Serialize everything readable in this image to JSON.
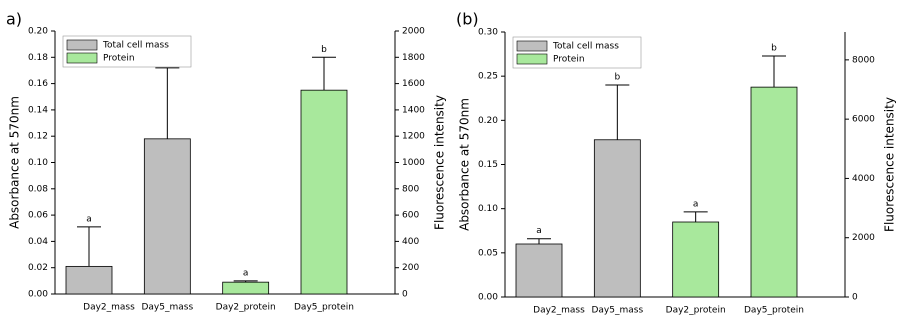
{
  "chart_data": [
    {
      "type": "bar",
      "panel_label": "a)",
      "ylabel": "Absorbance at 570nm",
      "y2label": "Fluorescence intensity",
      "categories": [
        "Day2_mass",
        "Day5_mass",
        "Day2_protein",
        "Day5_protein"
      ],
      "ylim": [
        0,
        0.2
      ],
      "yticks": [
        {
          "value": 0,
          "label": "0.00"
        },
        {
          "value": 0.02,
          "label": "0.02"
        },
        {
          "value": 0.04,
          "label": "0.04"
        },
        {
          "value": 0.06,
          "label": "0.06"
        },
        {
          "value": 0.08,
          "label": "0.08"
        },
        {
          "value": 0.1,
          "label": "0.10"
        },
        {
          "value": 0.12,
          "label": "0.12"
        },
        {
          "value": 0.14,
          "label": "0.14"
        },
        {
          "value": 0.16,
          "label": "0.16"
        },
        {
          "value": 0.18,
          "label": "0.18"
        },
        {
          "value": 0.2,
          "label": "0.20"
        }
      ],
      "y2lim": [
        0,
        2000
      ],
      "y2ticks": [
        0,
        200,
        400,
        600,
        800,
        1000,
        1200,
        1400,
        1600,
        1800,
        2000
      ],
      "series": [
        {
          "name": "Total cell mass",
          "color": "#bebebe",
          "values": [
            0.021,
            0.118,
            null,
            null
          ],
          "errors": [
            0.03,
            0.054,
            null,
            null
          ],
          "annotations": [
            "a",
            "b",
            null,
            null
          ]
        },
        {
          "name": "Protein",
          "color": "#a8e89c",
          "axis": "y2",
          "values": [
            null,
            null,
            90,
            1550
          ],
          "errors": [
            null,
            null,
            10,
            250
          ],
          "annotations": [
            null,
            null,
            "a",
            "b"
          ]
        }
      ]
    },
    {
      "type": "bar",
      "panel_label": "(b)",
      "ylabel": "Absorbance at 570nm",
      "y2label": "Fluorescence intensity",
      "categories": [
        "Day2_mass",
        "Day5_mass",
        "Day2_protein",
        "Day5_protein"
      ],
      "ylim": [
        0,
        0.3
      ],
      "yticks": [
        {
          "value": 0,
          "label": "0.00"
        },
        {
          "value": 0.05,
          "label": "0.05"
        },
        {
          "value": 0.1,
          "label": "0.10"
        },
        {
          "value": 0.15,
          "label": "0.15"
        },
        {
          "value": 0.2,
          "label": "0.20"
        },
        {
          "value": 0.25,
          "label": "0.25"
        },
        {
          "value": 0.3,
          "label": "0.30"
        }
      ],
      "y2lim": [
        0,
        8940
      ],
      "y2ticks": [
        0,
        2000,
        4000,
        6000,
        8000
      ],
      "series": [
        {
          "name": "Total cell mass",
          "color": "#bebebe",
          "values": [
            0.06,
            0.178,
            null,
            null
          ],
          "errors": [
            0.006,
            0.062,
            null,
            null
          ],
          "annotations": [
            "a",
            "b",
            null,
            null
          ]
        },
        {
          "name": "Protein",
          "color": "#a8e89c",
          "axis": "y2",
          "values": [
            null,
            null,
            2530,
            7080
          ],
          "errors": [
            null,
            null,
            340,
            1050
          ],
          "annotations": [
            null,
            null,
            "a",
            "b"
          ]
        }
      ]
    }
  ]
}
